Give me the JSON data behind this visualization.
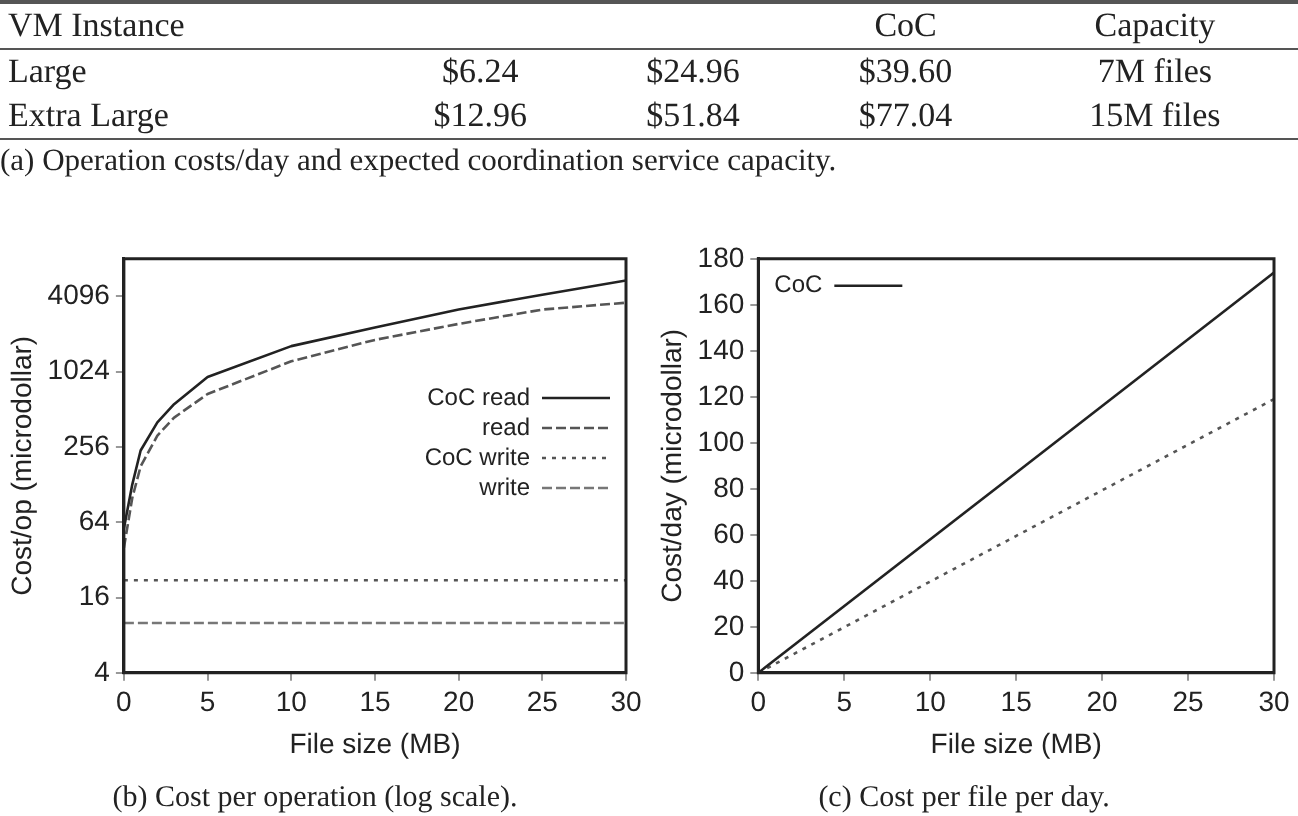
{
  "chart_data": [
    {
      "type": "other",
      "title": "(a) Operation costs/day and expected coordination service capacity.",
      "categories": [
        "VM Instance",
        null,
        null,
        "CoC",
        "Capacity"
      ],
      "annotations": [
        "Large",
        "$6.24",
        "$24.96",
        "$39.60",
        "7M files",
        "Extra Large",
        "$12.96",
        "$51.84",
        "$77.04",
        "15M files"
      ]
    },
    {
      "type": "line",
      "title": "(b) Cost per operation (log scale).",
      "xlabel": "File size (MB)",
      "ylabel": "Cost/op (microdollar)",
      "log": "y",
      "legend": "right",
      "xlim": [
        0,
        30
      ],
      "xticks": [
        0,
        5,
        10,
        15,
        20,
        25,
        30
      ],
      "ylim": [
        4,
        8192
      ],
      "yticks": [
        4,
        16,
        64,
        256,
        1024,
        4096
      ],
      "marker": "none",
      "series": [
        {
          "name": "CoC read",
          "color": "#222222",
          "line_style": "solid",
          "x": [
            0,
            0.5,
            1,
            2,
            3,
            5,
            10,
            15,
            20,
            25,
            30
          ],
          "values": [
            57,
            128,
            240,
            403,
            563,
            930,
            1640,
            2310,
            3216,
            4230,
            5500
          ]
        },
        {
          "name": "read",
          "color": "#555555",
          "line_style": "dashed",
          "x": [
            0,
            0.5,
            1,
            2,
            3,
            5,
            10,
            15,
            20,
            25,
            30
          ],
          "values": [
            40,
            100,
            179,
            316,
            440,
            679,
            1240,
            1840,
            2470,
            3216,
            3650
          ]
        },
        {
          "name": "CoC write",
          "color": "#555555",
          "line_style": "dotted",
          "x": [
            0,
            30
          ],
          "values": [
            22,
            22
          ]
        },
        {
          "name": "write",
          "color": "#777777",
          "line_style": "dashed",
          "x": [
            0,
            30
          ],
          "values": [
            10,
            10
          ]
        }
      ]
    },
    {
      "type": "line",
      "title": "(c) Cost per file per day.",
      "xlabel": "File size (MB)",
      "ylabel": "Cost/day (microdollar)",
      "legend": "top left",
      "xlim": [
        0,
        30
      ],
      "xticks": [
        0,
        5,
        10,
        15,
        20,
        25,
        30
      ],
      "ylim": [
        0,
        180
      ],
      "yticks": [
        0,
        20,
        40,
        60,
        80,
        100,
        120,
        140,
        160,
        180
      ],
      "marker": "none",
      "series": [
        {
          "name": "CoC",
          "color": "#222222",
          "line_style": "solid",
          "x": [
            0,
            30
          ],
          "values": [
            0,
            174
          ]
        },
        {
          "color": "#555555",
          "line_style": "dotted",
          "x": [
            0,
            30
          ],
          "values": [
            0,
            119
          ]
        }
      ]
    }
  ]
}
